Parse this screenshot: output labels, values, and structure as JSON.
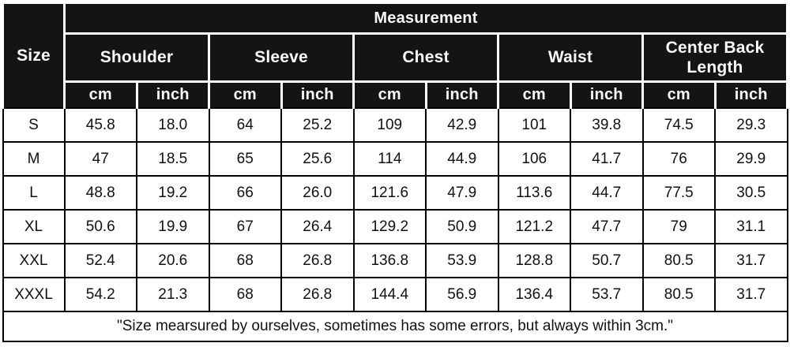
{
  "chart_data": {
    "type": "table",
    "title": "Measurement",
    "corner_label": "Size",
    "column_groups": [
      "Shoulder",
      "Sleeve",
      "Chest",
      "Waist",
      "Center Back Length"
    ],
    "units": [
      "cm",
      "inch"
    ],
    "row_labels": [
      "S",
      "M",
      "L",
      "XL",
      "XXL",
      "XXXL"
    ],
    "rows": [
      [
        "45.8",
        "18.0",
        "64",
        "25.2",
        "109",
        "42.9",
        "101",
        "39.8",
        "74.5",
        "29.3"
      ],
      [
        "47",
        "18.5",
        "65",
        "25.6",
        "114",
        "44.9",
        "106",
        "41.7",
        "76",
        "29.9"
      ],
      [
        "48.8",
        "19.2",
        "66",
        "26.0",
        "121.6",
        "47.9",
        "113.6",
        "44.7",
        "77.5",
        "30.5"
      ],
      [
        "50.6",
        "19.9",
        "67",
        "26.4",
        "129.2",
        "50.9",
        "121.2",
        "47.7",
        "79",
        "31.1"
      ],
      [
        "52.4",
        "20.6",
        "68",
        "26.8",
        "136.8",
        "53.9",
        "128.8",
        "50.7",
        "80.5",
        "31.7"
      ],
      [
        "54.2",
        "21.3",
        "68",
        "26.8",
        "144.4",
        "56.9",
        "136.4",
        "53.7",
        "80.5",
        "31.7"
      ]
    ],
    "footnote": "\"Size mearsured by ourselves, sometimes has some errors, but always within 3cm.\"",
    "layout_hints": {
      "header_style": "black cells with white separators",
      "body_style": "white cells with black grid"
    },
    "colors": {
      "header_bg": "#141414",
      "header_text": "#fafafa",
      "body_bg": "#ffffff",
      "body_text": "#111111",
      "grid": "#000000"
    }
  }
}
